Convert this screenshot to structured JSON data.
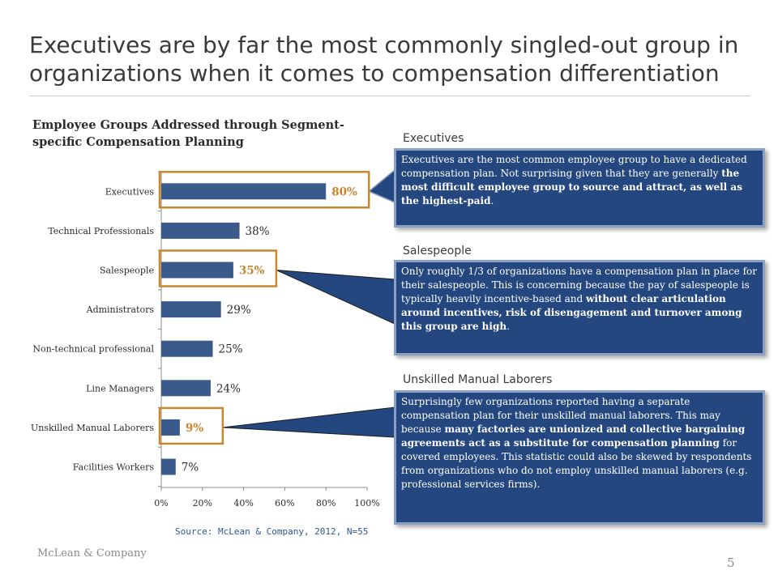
{
  "slide": {
    "title": "Executives are by far the most commonly singled-out group in organizations when it comes to compensation differentiation",
    "source": "Source: McLean & Company, 2012, N=55",
    "company": "McLean & Company",
    "page_number": "5"
  },
  "chart_data": {
    "type": "bar",
    "orientation": "horizontal",
    "title": "Employee Groups Addressed through Segment-specific Compensation Planning",
    "categories": [
      "Executives",
      "Technical Professionals",
      "Salespeople",
      "Administrators",
      "Non-technical professional",
      "Line Managers",
      "Unskilled Manual Laborers",
      "Facilities Workers"
    ],
    "values": [
      80,
      38,
      35,
      29,
      25,
      24,
      9,
      7
    ],
    "value_labels": [
      "80%",
      "38%",
      "35%",
      "29%",
      "25%",
      "24%",
      "9%",
      "7%"
    ],
    "highlighted": [
      "Executives",
      "Salespeople",
      "Unskilled Manual Laborers"
    ],
    "xlim": [
      0,
      100
    ],
    "xticks": [
      "0%",
      "20%",
      "40%",
      "60%",
      "80%",
      "100%"
    ],
    "grid": false,
    "colors": {
      "bar": "#3b5a8c",
      "highlight": "#c8862d",
      "label": "#2b2b2b",
      "highlight_label": "#c8862d"
    }
  },
  "callouts": [
    {
      "heading": "Executives",
      "segments": [
        {
          "text": "Executives are the most common employee group to have a dedicated compensation plan. Not surprising given that they are generally ",
          "bold": false
        },
        {
          "text": "the most difficult employee group to source and attract, as well as the highest-paid",
          "bold": true
        },
        {
          "text": ".",
          "bold": false
        }
      ]
    },
    {
      "heading": "Salespeople",
      "segments": [
        {
          "text": "Only roughly 1/3 of organizations have a compensation plan in place for their salespeople. This is concerning because the pay of salespeople is typically heavily incentive-based and ",
          "bold": false
        },
        {
          "text": "without clear articulation around incentives, risk of disengagement and turnover among this group are high",
          "bold": true
        },
        {
          "text": ".",
          "bold": false
        }
      ]
    },
    {
      "heading": "Unskilled Manual Laborers",
      "segments": [
        {
          "text": "Surprisingly few organizations reported having a separate compensation plan for their unskilled manual laborers. This may because ",
          "bold": false
        },
        {
          "text": "many factories are unionized and collective bargaining agreements act as a substitute for compensation planning",
          "bold": true
        },
        {
          "text": " for covered employees. This statistic could also be skewed by respondents from organizations who do not employ unskilled manual laborers (e.g. professional services firms).",
          "bold": false
        }
      ]
    }
  ],
  "theme": {
    "callout_bg": "#25477f",
    "callout_border": "#8aa0c4",
    "accent": "#c8862d"
  }
}
